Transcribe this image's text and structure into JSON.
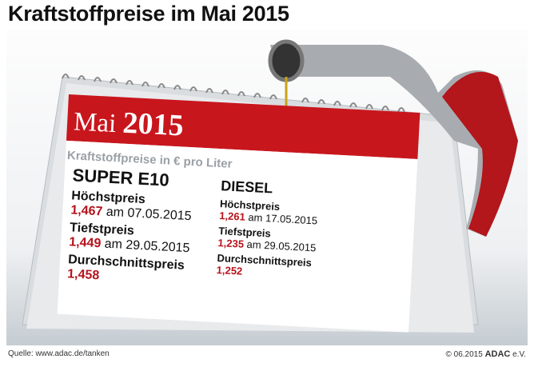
{
  "title": "Kraftstoffpreise im Mai 2015",
  "calendar": {
    "month": "Mai",
    "year": "2015",
    "subtitle": "Kraftstoffpreise in € pro Liter",
    "super_e10": {
      "heading": "SUPER E10",
      "max_label": "Höchstpreis",
      "max_value": "1,467",
      "max_date": "am 07.05.2015",
      "min_label": "Tiefstpreis",
      "min_value": "1,449",
      "min_date": "am 29.05.2015",
      "avg_label": "Durchschnittspreis",
      "avg_value": "1,458"
    },
    "diesel": {
      "heading": "DIESEL",
      "max_label": "Höchstpreis",
      "max_value": "1,261",
      "max_date": "am 17.05.2015",
      "min_label": "Tiefstpreis",
      "min_value": "1,235",
      "min_date": "am 29.05.2015",
      "avg_label": "Durchschnittspreis",
      "avg_value": "1,252"
    }
  },
  "footer": {
    "source": "Quelle: www.adac.de/tanken",
    "copyright": "© 06.2015",
    "brand": "ADAC",
    "brand_suffix": "e.V."
  },
  "colors": {
    "accent_red": "#c8161d",
    "price_red": "#b5121b"
  },
  "icons": [
    "fuel-nozzle-icon",
    "fuel-drop-icon",
    "desk-calendar-icon"
  ]
}
